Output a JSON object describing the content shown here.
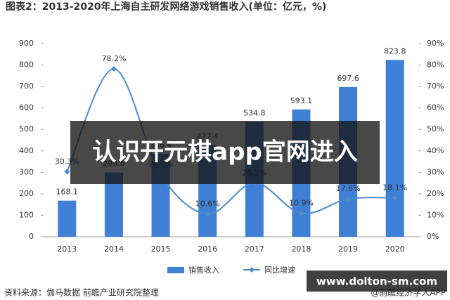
{
  "chart_data": {
    "type": "bar-line",
    "title": "图表2：2013-2020年上海自主研发网络游戏销售收入(单位：亿元，%)",
    "categories": [
      "2013",
      "2014",
      "2015",
      "2016",
      "2017",
      "2018",
      "2019",
      "2020"
    ],
    "series": [
      {
        "name": "销售收入",
        "type": "bar",
        "color": "#3f7fd6",
        "values": [
          168.1,
          299.6,
          386.4,
          427.4,
          534.8,
          593.1,
          697.6,
          823.8
        ]
      },
      {
        "name": "同比增速",
        "type": "line",
        "axis": "y2",
        "color": "#4a8ccc",
        "values": [
          30.3,
          78.2,
          29.0,
          10.6,
          25.1,
          10.9,
          17.6,
          18.1
        ],
        "value_labels": [
          "30.3%",
          "78.2%",
          "29.0%",
          "10.6%",
          "25.1%",
          "10.9%",
          "17.6%",
          "18.1%"
        ]
      }
    ],
    "ylim": [
      0,
      900
    ],
    "yticks": [
      0,
      100,
      200,
      300,
      400,
      500,
      600,
      700,
      800,
      900
    ],
    "y2lim": [
      0,
      90
    ],
    "y2ticks": [
      {
        "value": 0,
        "label": "0%"
      },
      {
        "value": 10,
        "label": "10%"
      },
      {
        "value": 20,
        "label": "20%"
      },
      {
        "value": 30,
        "label": "30%"
      },
      {
        "value": 40,
        "label": "40%"
      },
      {
        "value": 50,
        "label": "50%"
      },
      {
        "value": 60,
        "label": "60%"
      },
      {
        "value": 70,
        "label": "70%"
      },
      {
        "value": 80,
        "label": "80%"
      },
      {
        "value": 90,
        "label": "90%"
      }
    ],
    "legend": "bottom",
    "source": "资料来源：伽马数据 前瞻产业研究院整理",
    "credit": "@前瞻经济学人APP"
  },
  "overlay": {
    "banner": "认识开元棋app官网进入",
    "watermark": "www.dolton-sm.com"
  }
}
